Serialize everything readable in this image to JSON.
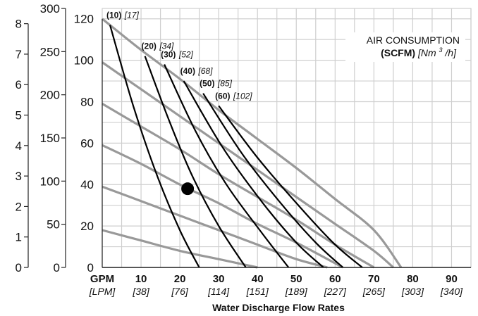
{
  "chart_data": {
    "type": "line",
    "title": "",
    "xlabel": "Water Discharge Flow Rates",
    "x_unit_primary": "GPM",
    "x_unit_secondary": "[LPM]",
    "x_ticks": [
      {
        "gpm": "10",
        "lpm": "[38]"
      },
      {
        "gpm": "20",
        "lpm": "[76]"
      },
      {
        "gpm": "30",
        "lpm": "[114]"
      },
      {
        "gpm": "40",
        "lpm": "[151]"
      },
      {
        "gpm": "50",
        "lpm": "[189]"
      },
      {
        "gpm": "60",
        "lpm": "[227]"
      },
      {
        "gpm": "70",
        "lpm": "[265]"
      },
      {
        "gpm": "80",
        "lpm": "[303]"
      },
      {
        "gpm": "90",
        "lpm": "[340]"
      }
    ],
    "xlim": [
      0,
      95
    ],
    "y_axes": [
      {
        "ticks": [
          "0",
          "1",
          "2",
          "3",
          "4",
          "5",
          "6",
          "7",
          "8"
        ],
        "range": [
          0,
          8.5
        ]
      },
      {
        "ticks": [
          "0",
          "50",
          "100",
          "150",
          "200",
          "250",
          "300"
        ],
        "range": [
          0,
          300
        ]
      },
      {
        "ticks": [
          "0",
          "20",
          "40",
          "60",
          "80",
          "100",
          "120"
        ],
        "range": [
          0,
          125
        ]
      }
    ],
    "legend": {
      "title_line1": "AIR CONSUMPTION",
      "title_line2_bold": "(SCFM)",
      "title_line2_italic": "[Nm",
      "title_line2_sup": "3",
      "title_line2_end": "/h]",
      "placement": "top-right"
    },
    "pressure_curves": [
      {
        "x": [
          0,
          10,
          20,
          30,
          40,
          50,
          60,
          70,
          77
        ],
        "y": [
          120,
          105,
          91,
          76,
          62,
          48,
          33,
          18,
          0
        ]
      },
      {
        "x": [
          0,
          10,
          20,
          30,
          40,
          50,
          60,
          70,
          75
        ],
        "y": [
          99,
          86,
          73,
          60,
          47,
          34,
          21,
          8,
          0
        ]
      },
      {
        "x": [
          0,
          10,
          20,
          30,
          40,
          50,
          60,
          70
        ],
        "y": [
          79,
          68,
          57,
          45,
          34,
          23,
          11,
          0
        ]
      },
      {
        "x": [
          0,
          10,
          20,
          30,
          40,
          50,
          62
        ],
        "y": [
          59,
          50,
          40,
          31,
          21,
          12,
          0
        ]
      },
      {
        "x": [
          0,
          10,
          20,
          30,
          40,
          50,
          58
        ],
        "y": [
          39,
          32,
          25,
          18,
          11,
          4,
          0
        ]
      },
      {
        "x": [
          0,
          10,
          20,
          30,
          40
        ],
        "y": [
          18,
          13,
          8,
          4,
          0
        ]
      }
    ],
    "air_curves": [
      {
        "label_bold": "(10)",
        "label_italic": "[17]",
        "x": [
          2,
          8,
          14,
          20,
          25
        ],
        "y": [
          117,
          78,
          45,
          18,
          0
        ]
      },
      {
        "label_bold": "(20)",
        "label_italic": "[34]",
        "x": [
          11,
          17,
          23,
          30,
          37
        ],
        "y": [
          102,
          72,
          45,
          20,
          0
        ]
      },
      {
        "label_bold": "(30)",
        "label_italic": "[52]",
        "x": [
          16,
          24,
          32,
          41,
          48
        ],
        "y": [
          98,
          66,
          40,
          17,
          0
        ]
      },
      {
        "label_bold": "(40)",
        "label_italic": "[68]",
        "x": [
          21,
          31,
          41,
          50,
          57
        ],
        "y": [
          90,
          58,
          32,
          12,
          0
        ]
      },
      {
        "label_bold": "(50)",
        "label_italic": "[85]",
        "x": [
          26,
          36,
          46,
          55,
          62
        ],
        "y": [
          84,
          55,
          31,
          12,
          0
        ]
      },
      {
        "label_bold": "(60)",
        "label_italic": "[102]",
        "x": [
          30,
          40,
          51,
          60,
          67
        ],
        "y": [
          78,
          53,
          29,
          11,
          0
        ]
      }
    ],
    "marker_point": {
      "x": 22,
      "y": 38
    },
    "grid": true,
    "colors": {
      "pressure_curve": "#999999",
      "air_curve": "#000000",
      "grid": "#cfcfcf"
    }
  }
}
